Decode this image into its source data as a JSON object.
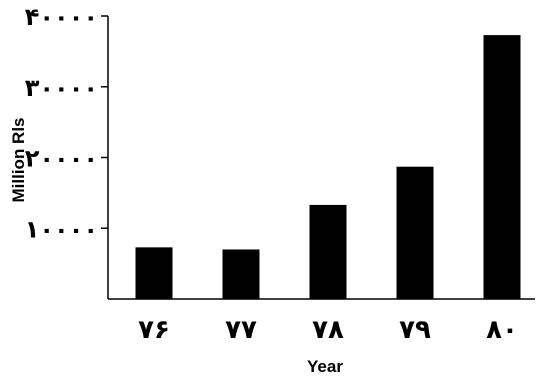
{
  "chart_data": {
    "type": "bar",
    "categories": [
      "۷۶",
      "۷۷",
      "۷۸",
      "۷۹",
      "۸۰"
    ],
    "values": [
      7300,
      7000,
      13300,
      18700,
      37300
    ],
    "xlabel": "Year",
    "ylabel": "Million Rls",
    "ylim": [
      0,
      40000
    ],
    "yticks": [
      10000,
      20000,
      30000,
      40000
    ],
    "ytick_labels": [
      "۱۰۰۰۰",
      "۲۰۰۰۰",
      "۳۰۰۰۰",
      "۴۰۰۰۰"
    ],
    "grid": false,
    "legend": "none",
    "bar_color": "#000000"
  }
}
